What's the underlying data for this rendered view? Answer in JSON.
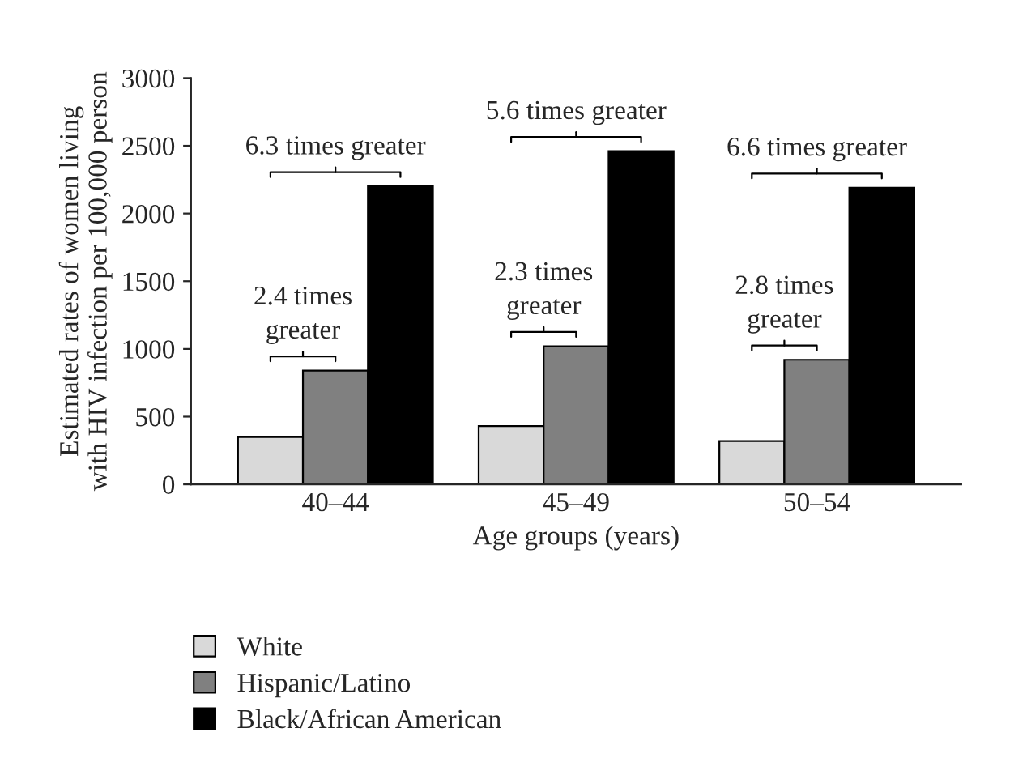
{
  "chart_data": {
    "type": "bar",
    "xlabel": "Age groups (years)",
    "ylabel": "Estimated rates of women living\nwith HIV infection per 100,000 person",
    "categories": [
      "40–44",
      "45–49",
      "50–54"
    ],
    "series": [
      {
        "name": "White",
        "color": "#d9d9d9",
        "values": [
          350,
          430,
          320
        ]
      },
      {
        "name": "Hispanic/Latino",
        "color": "#808080",
        "values": [
          840,
          1020,
          920
        ]
      },
      {
        "name": "Black/African American",
        "color": "#000000",
        "values": [
          2200,
          2460,
          2190
        ]
      }
    ],
    "ylim": [
      0,
      3000
    ],
    "yticks": [
      0,
      500,
      1000,
      1500,
      2000,
      2500,
      3000
    ],
    "annotations": [
      "2.4 times\ngreater",
      "6.3 times greater",
      "2.3 times\ngreater",
      "5.6 times greater",
      "2.8 times\ngreater",
      "6.6 times greater"
    ],
    "legend": "bottom left",
    "grid": false
  }
}
